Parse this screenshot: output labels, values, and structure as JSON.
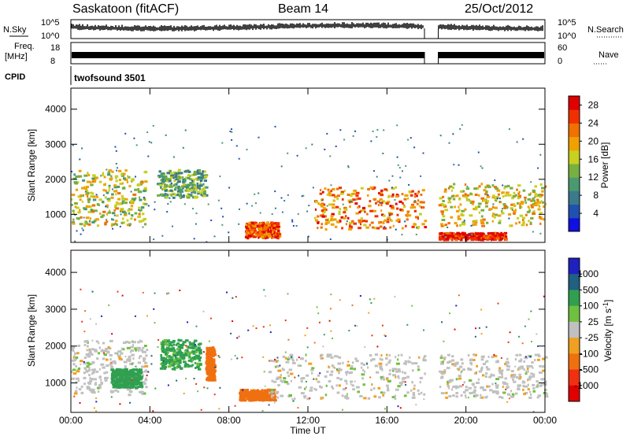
{
  "header": {
    "site": "Saskatoon (fitACF)",
    "beam": "Beam 14",
    "date": "25/Oct/2012"
  },
  "top_panels": {
    "nsky_label": "N.Sky",
    "nsky_ticks": [
      "10^5",
      "10^0"
    ],
    "nsearch_label": "N.Search",
    "nsearch_ticks": [
      "10^5",
      "10^0"
    ],
    "freq_label": "Freq.",
    "freq_unit": "[MHz]",
    "freq_ticks": [
      "18",
      "8"
    ],
    "nave_label": "Nave",
    "nave_ticks": [
      "60",
      "0"
    ],
    "cpid_label": "CPID",
    "cpid_value": "twofsound 3501"
  },
  "chart_data": [
    {
      "type": "heatmap",
      "title": "",
      "xlabel": "",
      "ylabel": "Slant Range [km]",
      "ylim": [
        200,
        4600
      ],
      "yticks": [
        "1000",
        "2000",
        "3000",
        "4000"
      ],
      "xlim": [
        0,
        24
      ],
      "colorbar": {
        "label": "Power [dB]",
        "ticks": [
          "4",
          "8",
          "12",
          "16",
          "20",
          "24",
          "28"
        ],
        "range": [
          0,
          30
        ],
        "colors": [
          "#1010e0",
          "#2050b0",
          "#3a7a8a",
          "#4a9a70",
          "#78b040",
          "#c8d020",
          "#f0a000",
          "#f07000",
          "#f03000",
          "#e00000"
        ]
      },
      "data_gap_hours": [
        17.9,
        18.6
      ],
      "echo_regions": [
        {
          "t0": 0.0,
          "t1": 3.8,
          "r0": 700,
          "r1": 2300,
          "level": 16
        },
        {
          "t0": 4.3,
          "t1": 6.8,
          "r0": 1500,
          "r1": 2300,
          "level": 12
        },
        {
          "t0": 8.8,
          "t1": 10.5,
          "r0": 350,
          "r1": 800,
          "level": 24
        },
        {
          "t0": 12.3,
          "t1": 17.9,
          "r0": 600,
          "r1": 1800,
          "level": 22
        },
        {
          "t0": 18.6,
          "t1": 24.0,
          "r0": 700,
          "r1": 1900,
          "level": 18
        },
        {
          "t0": 18.6,
          "t1": 22.0,
          "r0": 300,
          "r1": 500,
          "level": 28
        }
      ]
    },
    {
      "type": "heatmap",
      "title": "",
      "xlabel": "Time UT",
      "ylabel": "Slant Range [km]",
      "ylim": [
        200,
        4600
      ],
      "yticks": [
        "1000",
        "2000",
        "3000",
        "4000"
      ],
      "xlim": [
        0,
        24
      ],
      "xticks": [
        "00:00",
        "04:00",
        "08:00",
        "12:00",
        "16:00",
        "20:00",
        "00:00"
      ],
      "colorbar": {
        "label": "Velocity [m s-1]",
        "ticks": [
          "1000",
          "500",
          "100",
          "25",
          "-25",
          "-100",
          "-500",
          "-1000"
        ],
        "colors": [
          "#2020c0",
          "#206080",
          "#30a050",
          "#70c040",
          "#c0c0c0",
          "#f0a020",
          "#f07010",
          "#f03010",
          "#e00000"
        ]
      },
      "data_gap_hours": [
        17.9,
        18.6
      ],
      "echo_regions": [
        {
          "t0": 0.0,
          "t1": 3.8,
          "r0": 700,
          "r1": 2200,
          "velocity": 0
        },
        {
          "t0": 2.0,
          "t1": 3.5,
          "r0": 900,
          "r1": 1400,
          "velocity": 300
        },
        {
          "t0": 4.5,
          "t1": 6.5,
          "r0": 1400,
          "r1": 2200,
          "velocity": 120
        },
        {
          "t0": 6.8,
          "t1": 7.2,
          "r0": 1100,
          "r1": 2000,
          "velocity": -250
        },
        {
          "t0": 8.5,
          "t1": 10.3,
          "r0": 550,
          "r1": 850,
          "velocity": -200
        },
        {
          "t0": 10.0,
          "t1": 17.9,
          "r0": 600,
          "r1": 1800,
          "velocity": 0
        },
        {
          "t0": 18.6,
          "t1": 24.0,
          "r0": 600,
          "r1": 1800,
          "velocity": 0
        }
      ]
    }
  ]
}
